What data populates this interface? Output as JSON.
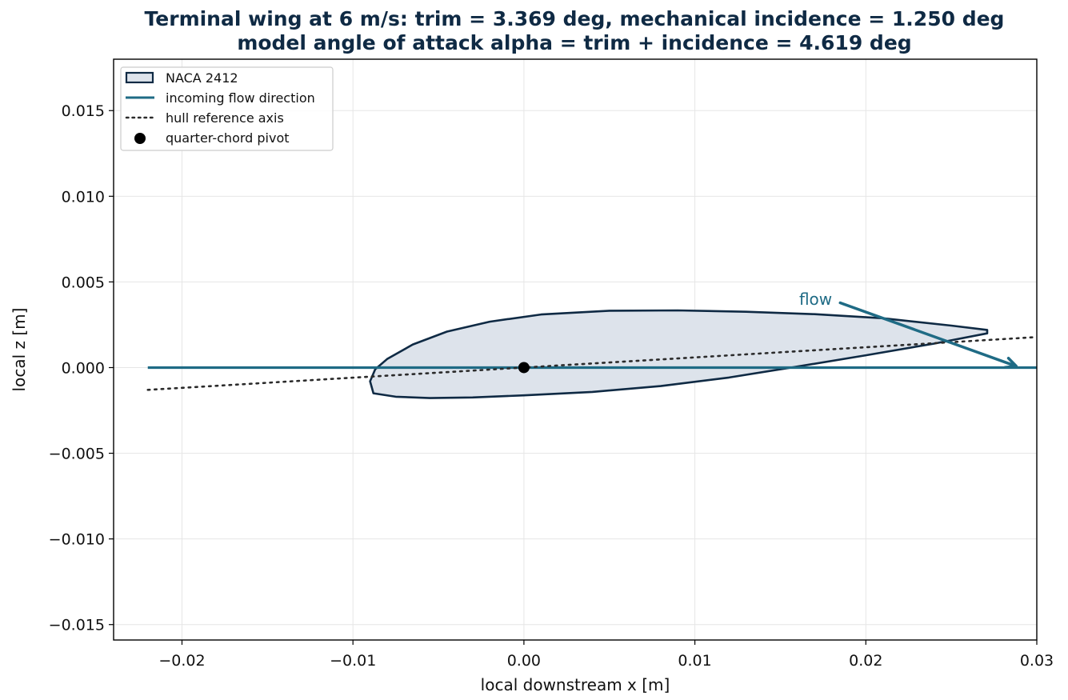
{
  "chart_data": {
    "type": "line",
    "title_line1": "Terminal wing at 6 m/s: trim = 3.369 deg, mechanical incidence = 1.250 deg",
    "title_line2": "model angle of attack alpha = trim + incidence = 4.619 deg",
    "xlabel": "local downstream x [m]",
    "ylabel": "local z [m]",
    "xlim": [
      -0.024,
      0.03
    ],
    "ylim": [
      -0.0159,
      0.018
    ],
    "x_ticks": [
      -0.02,
      -0.01,
      0.0,
      0.01,
      0.02,
      0.03
    ],
    "x_tick_labels": [
      "−0.02",
      "−0.01",
      "0.00",
      "0.01",
      "0.02",
      "0.03"
    ],
    "y_ticks": [
      -0.015,
      -0.01,
      -0.005,
      0.0,
      0.005,
      0.01,
      0.015
    ],
    "y_tick_labels": [
      "−0.015",
      "−0.010",
      "−0.005",
      "0.000",
      "0.005",
      "0.010",
      "0.015"
    ],
    "grid": true,
    "legend_position": "upper-left",
    "colors": {
      "airfoil_edge": "#0f2a44",
      "airfoil_fill": "#dde3eb",
      "flow": "#1f6b85",
      "hull_axis": "#2b2b2b",
      "pivot": "#000000",
      "title": "#0f2a44"
    },
    "series": [
      {
        "name": "NACA 2412",
        "kind": "filled-polygon",
        "x": [
          0.0271,
          0.024,
          0.02,
          0.016,
          0.012,
          0.008,
          0.004,
          0.0,
          -0.003,
          -0.0055,
          -0.0075,
          -0.0088,
          -0.009,
          -0.0087,
          -0.008,
          -0.0065,
          -0.0045,
          -0.002,
          0.001,
          0.005,
          0.009,
          0.013,
          0.017,
          0.021,
          0.025,
          0.0271
        ],
        "z": [
          0.002,
          0.0014,
          0.00072,
          6e-05,
          -0.00058,
          -0.00108,
          -0.00142,
          -0.00162,
          -0.00174,
          -0.00178,
          -0.0017,
          -0.0015,
          -0.0008,
          -0.0001,
          0.0005,
          0.00135,
          0.0021,
          0.00268,
          0.0031,
          0.00332,
          0.00334,
          0.00326,
          0.00312,
          0.00288,
          0.00245,
          0.0022
        ]
      },
      {
        "name": "incoming flow direction",
        "kind": "line",
        "x": [
          -0.022,
          0.03
        ],
        "z": [
          0.0,
          0.0
        ]
      },
      {
        "name": "hull reference axis",
        "kind": "dotted-line",
        "x": [
          -0.022,
          0.03
        ],
        "z": [
          -0.0013,
          0.00178
        ]
      },
      {
        "name": "quarter-chord pivot",
        "kind": "scatter",
        "x": [
          0.0
        ],
        "z": [
          0.0
        ]
      }
    ],
    "annotations": [
      {
        "text": "flow",
        "text_x": 0.0161,
        "text_z": 0.004,
        "arrow_from_x": 0.0185,
        "arrow_from_z": 0.00378,
        "arrow_to_x": 0.0288,
        "arrow_to_z": 8e-05
      }
    ]
  }
}
